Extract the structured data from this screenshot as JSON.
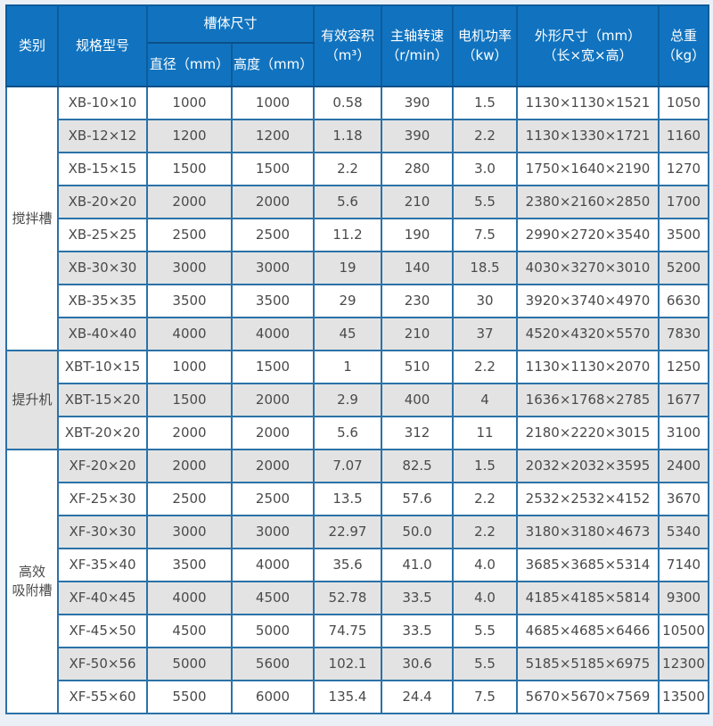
{
  "colors": {
    "page_background": "#eaf0f6",
    "header_background": "#1173bf",
    "header_border": "#0d5c9c",
    "body_border": "#2b72a8",
    "row_background": "#ffffff",
    "row_alt_background": "#e3e3e3",
    "header_text": "#ffffff",
    "cell_text": "#4a4a4a"
  },
  "table": {
    "headers": {
      "category": "类别",
      "model": "规格型号",
      "tank_size": "槽体尺寸",
      "diameter": "直径（mm）",
      "height": "高度（mm）",
      "volume": "有效容积\n（m³）",
      "speed": "主轴转速\n（r/min）",
      "power": "电机功率\n（kw）",
      "dimensions": "外形尺寸（mm）\n（长×宽×高）",
      "weight": "总重\n（kg）"
    },
    "sections": [
      {
        "category": "搅拌槽",
        "shade": "white",
        "rows": [
          [
            "XB-10×10",
            "1000",
            "1000",
            "0.58",
            "390",
            "1.5",
            "1130×1130×1521",
            "1050"
          ],
          [
            "XB-12×12",
            "1200",
            "1200",
            "1.18",
            "390",
            "2.2",
            "1130×1330×1721",
            "1160"
          ],
          [
            "XB-15×15",
            "1500",
            "1500",
            "2.2",
            "280",
            "3.0",
            "1750×1640×2190",
            "1270"
          ],
          [
            "XB-20×20",
            "2000",
            "2000",
            "5.6",
            "210",
            "5.5",
            "2380×2160×2850",
            "1700"
          ],
          [
            "XB-25×25",
            "2500",
            "2500",
            "11.2",
            "190",
            "7.5",
            "2990×2720×3540",
            "3500"
          ],
          [
            "XB-30×30",
            "3000",
            "3000",
            "19",
            "140",
            "18.5",
            "4030×3270×3010",
            "5200"
          ],
          [
            "XB-35×35",
            "3500",
            "3500",
            "29",
            "230",
            "30",
            "3920×3740×4970",
            "6630"
          ],
          [
            "XB-40×40",
            "4000",
            "4000",
            "45",
            "210",
            "37",
            "4520×4320×5570",
            "7830"
          ]
        ]
      },
      {
        "category": "提升机",
        "shade": "gray",
        "rows": [
          [
            "XBT-10×15",
            "1000",
            "1500",
            "1",
            "510",
            "2.2",
            "1130×1130×2070",
            "1250"
          ],
          [
            "XBT-15×20",
            "1500",
            "2000",
            "2.9",
            "400",
            "4",
            "1636×1768×2785",
            "1677"
          ],
          [
            "XBT-20×20",
            "2000",
            "2000",
            "5.6",
            "312",
            "11",
            "2180×2220×3015",
            "3100"
          ]
        ]
      },
      {
        "category": "高效\n吸附槽",
        "shade": "white",
        "rows": [
          [
            "XF-20×20",
            "2000",
            "2000",
            "7.07",
            "82.5",
            "1.5",
            "2032×2032×3595",
            "2400"
          ],
          [
            "XF-25×30",
            "2500",
            "2500",
            "13.5",
            "57.6",
            "2.2",
            "2532×2532×4152",
            "3670"
          ],
          [
            "XF-30×30",
            "3000",
            "3000",
            "22.97",
            "50.0",
            "2.2",
            "3180×3180×4673",
            "5340"
          ],
          [
            "XF-35×40",
            "3500",
            "4000",
            "35.6",
            "41.0",
            "4.0",
            "3685×3685×5314",
            "7140"
          ],
          [
            "XF-40×45",
            "4000",
            "4500",
            "52.78",
            "33.5",
            "4.0",
            "4185×4185×5814",
            "9300"
          ],
          [
            "XF-45×50",
            "4500",
            "5000",
            "74.75",
            "33.5",
            "5.5",
            "4685×4685×6466",
            "10500"
          ],
          [
            "XF-50×56",
            "5000",
            "5600",
            "102.1",
            "30.6",
            "5.5",
            "5185×5185×6975",
            "12300"
          ],
          [
            "XF-55×60",
            "5500",
            "6000",
            "135.4",
            "24.4",
            "7.5",
            "5670×5670×7569",
            "13500"
          ]
        ]
      }
    ]
  }
}
